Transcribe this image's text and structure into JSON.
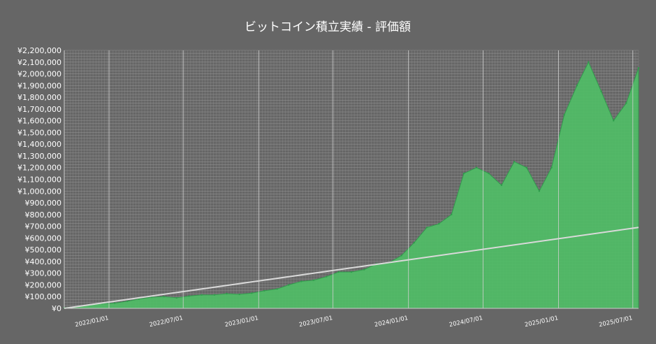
{
  "chart_data": {
    "type": "area",
    "title": "ビットコイン積立実績 - 評価額",
    "xlabel": "",
    "ylabel": "",
    "ylim": [
      0,
      2200000
    ],
    "xlim": [
      "2021-09-14",
      "2025-07-15"
    ],
    "yticks": [
      0,
      100000,
      200000,
      300000,
      400000,
      500000,
      600000,
      700000,
      800000,
      900000,
      1000000,
      1100000,
      1200000,
      1300000,
      1400000,
      1500000,
      1600000,
      1700000,
      1800000,
      1900000,
      2000000,
      2100000,
      2200000
    ],
    "ytick_labels": [
      "¥0",
      "¥100,000",
      "¥200,000",
      "¥300,000",
      "¥400,000",
      "¥500,000",
      "¥600,000",
      "¥700,000",
      "¥800,000",
      "¥900,000",
      "¥1,000,000",
      "¥1,100,000",
      "¥1,200,000",
      "¥1,300,000",
      "¥1,400,000",
      "¥1,500,000",
      "¥1,600,000",
      "¥1,700,000",
      "¥1,800,000",
      "¥1,900,000",
      "¥2,000,000",
      "¥2,100,000",
      "¥2,200,000"
    ],
    "xticks": [
      "2022-01-01",
      "2022-07-01",
      "2023-01-01",
      "2023-07-01",
      "2024-01-01",
      "2024-07-01",
      "2025-01-01",
      "2025-07-01"
    ],
    "xtick_labels": [
      "2022/01/01",
      "2022/07/01",
      "2023/01/01",
      "2023/07/01",
      "2024/01/01",
      "2024/07/01",
      "2025/01/01",
      "2025/07/01"
    ],
    "grid": true,
    "colors": {
      "background": "#666666",
      "area_fill": "#4fbf66",
      "area_edge": "#2e9e4b",
      "cost_line": "#d9d9d9",
      "grid": "#9a9a9a",
      "text": "#ffffff"
    },
    "series": [
      {
        "type": "area",
        "x": [
          "2021-09-14",
          "2021-10-15",
          "2021-11-15",
          "2021-12-15",
          "2022-01-15",
          "2022-02-15",
          "2022-03-15",
          "2022-04-15",
          "2022-05-15",
          "2022-06-15",
          "2022-07-15",
          "2022-08-15",
          "2022-09-15",
          "2022-10-15",
          "2022-11-15",
          "2022-12-15",
          "2023-01-15",
          "2023-02-15",
          "2023-03-15",
          "2023-04-15",
          "2023-05-15",
          "2023-06-15",
          "2023-07-15",
          "2023-08-15",
          "2023-09-15",
          "2023-10-15",
          "2023-11-15",
          "2023-12-15",
          "2024-01-15",
          "2024-02-15",
          "2024-03-15",
          "2024-04-15",
          "2024-05-15",
          "2024-06-15",
          "2024-07-15",
          "2024-08-15",
          "2024-09-15",
          "2024-10-15",
          "2024-11-15",
          "2024-12-15",
          "2025-01-15",
          "2025-02-15",
          "2025-03-15",
          "2025-04-15",
          "2025-05-15",
          "2025-06-15",
          "2025-07-15"
        ],
        "values": [
          5000,
          15000,
          30000,
          40000,
          45000,
          60000,
          80000,
          95000,
          100000,
          90000,
          105000,
          115000,
          115000,
          125000,
          120000,
          130000,
          150000,
          165000,
          200000,
          230000,
          240000,
          270000,
          310000,
          310000,
          330000,
          380000,
          390000,
          450000,
          560000,
          690000,
          720000,
          800000,
          1150000,
          1200000,
          1150000,
          1050000,
          1250000,
          1200000,
          1000000,
          1200000,
          1650000,
          1900000,
          2100000,
          1850000,
          1600000,
          1750000,
          2050000
        ]
      },
      {
        "type": "line",
        "x": [
          "2021-09-14",
          "2025-07-15"
        ],
        "values": [
          0,
          690000
        ]
      }
    ]
  }
}
